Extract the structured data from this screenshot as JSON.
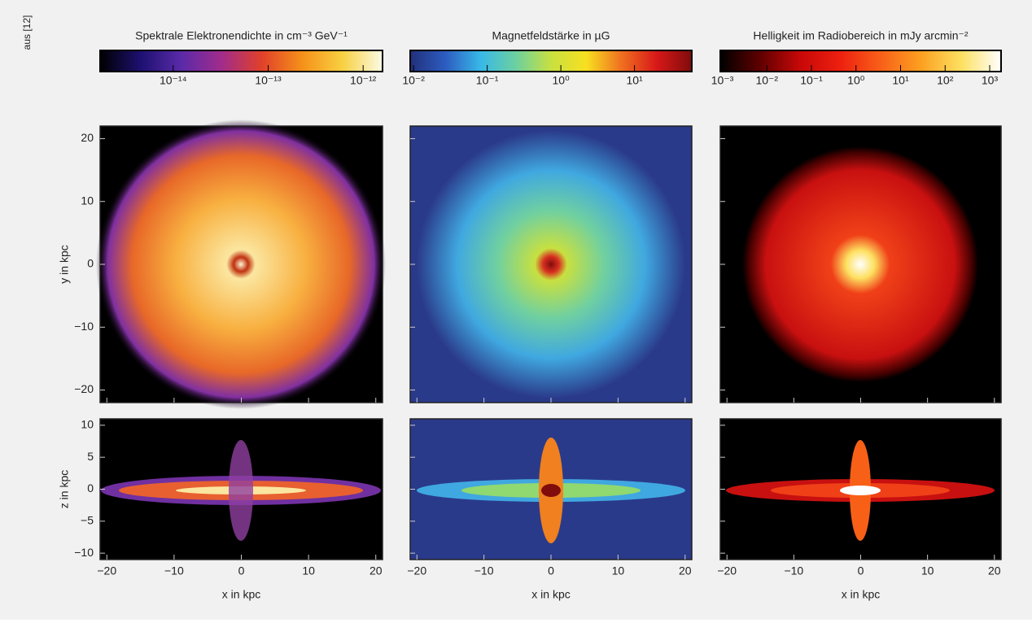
{
  "source_note": "aus [12]",
  "colorbars": [
    {
      "title": "Spektrale Elektronendichte in cm⁻³ GeV⁻¹",
      "log": true,
      "lim": [
        1.7e-15,
        1.6e-12
      ],
      "colors": [
        "#000000",
        "#1c1070",
        "#5a2aa8",
        "#a02c8c",
        "#e0402a",
        "#f5901a",
        "#f8d040",
        "#fbfbe6"
      ],
      "ticks": [
        {
          "value": 1e-14,
          "label": "10⁻¹⁴"
        },
        {
          "value": 1e-13,
          "label": "10⁻¹³"
        },
        {
          "value": 1e-12,
          "label": "10⁻¹²"
        }
      ]
    },
    {
      "title": "Magnetfeldstärke in µG",
      "log": true,
      "lim": [
        0.009,
        60
      ],
      "colors": [
        "#22307a",
        "#2c5cc0",
        "#38b8e8",
        "#6cd0a0",
        "#c8e040",
        "#f8e020",
        "#f07020",
        "#d81818",
        "#800c0c"
      ],
      "ticks": [
        {
          "value": 0.01,
          "label": "10⁻²"
        },
        {
          "value": 0.1,
          "label": "10⁻¹"
        },
        {
          "value": 1,
          "label": "10⁰"
        },
        {
          "value": 10,
          "label": "10¹"
        }
      ]
    },
    {
      "title": "Helligkeit im Radiobereich in mJy arcmin⁻²",
      "log": true,
      "lim": [
        0.0009,
        1800
      ],
      "colors": [
        "#000000",
        "#600000",
        "#c80808",
        "#ee2010",
        "#f86018",
        "#fca020",
        "#fde060",
        "#ffffff"
      ],
      "ticks": [
        {
          "value": 0.001,
          "label": "10⁻³"
        },
        {
          "value": 0.01,
          "label": "10⁻²"
        },
        {
          "value": 0.1,
          "label": "10⁻¹"
        },
        {
          "value": 1,
          "label": "10⁰"
        },
        {
          "value": 10,
          "label": "10¹"
        },
        {
          "value": 100,
          "label": "10²"
        },
        {
          "value": 1000,
          "label": "10³"
        }
      ]
    }
  ],
  "panels": {
    "xlim": [
      -21,
      21
    ],
    "xticks": [
      {
        "value": -20,
        "label": "−20"
      },
      {
        "value": -10,
        "label": "−10"
      },
      0,
      10,
      20
    ],
    "xlabel": "x in kpc",
    "top": {
      "ylim": [
        -22,
        22
      ],
      "yticks": [
        20,
        10,
        0,
        {
          "value": -10,
          "label": "−10"
        },
        {
          "value": -20,
          "label": "−20"
        }
      ],
      "ylabel": "y in kpc"
    },
    "bottom": {
      "ylim": [
        -11,
        11
      ],
      "yticks": [
        10,
        5,
        0,
        {
          "value": -5,
          "label": "−5"
        },
        {
          "value": -10,
          "label": "−10"
        }
      ],
      "ylabel": "z in kpc"
    }
  }
}
